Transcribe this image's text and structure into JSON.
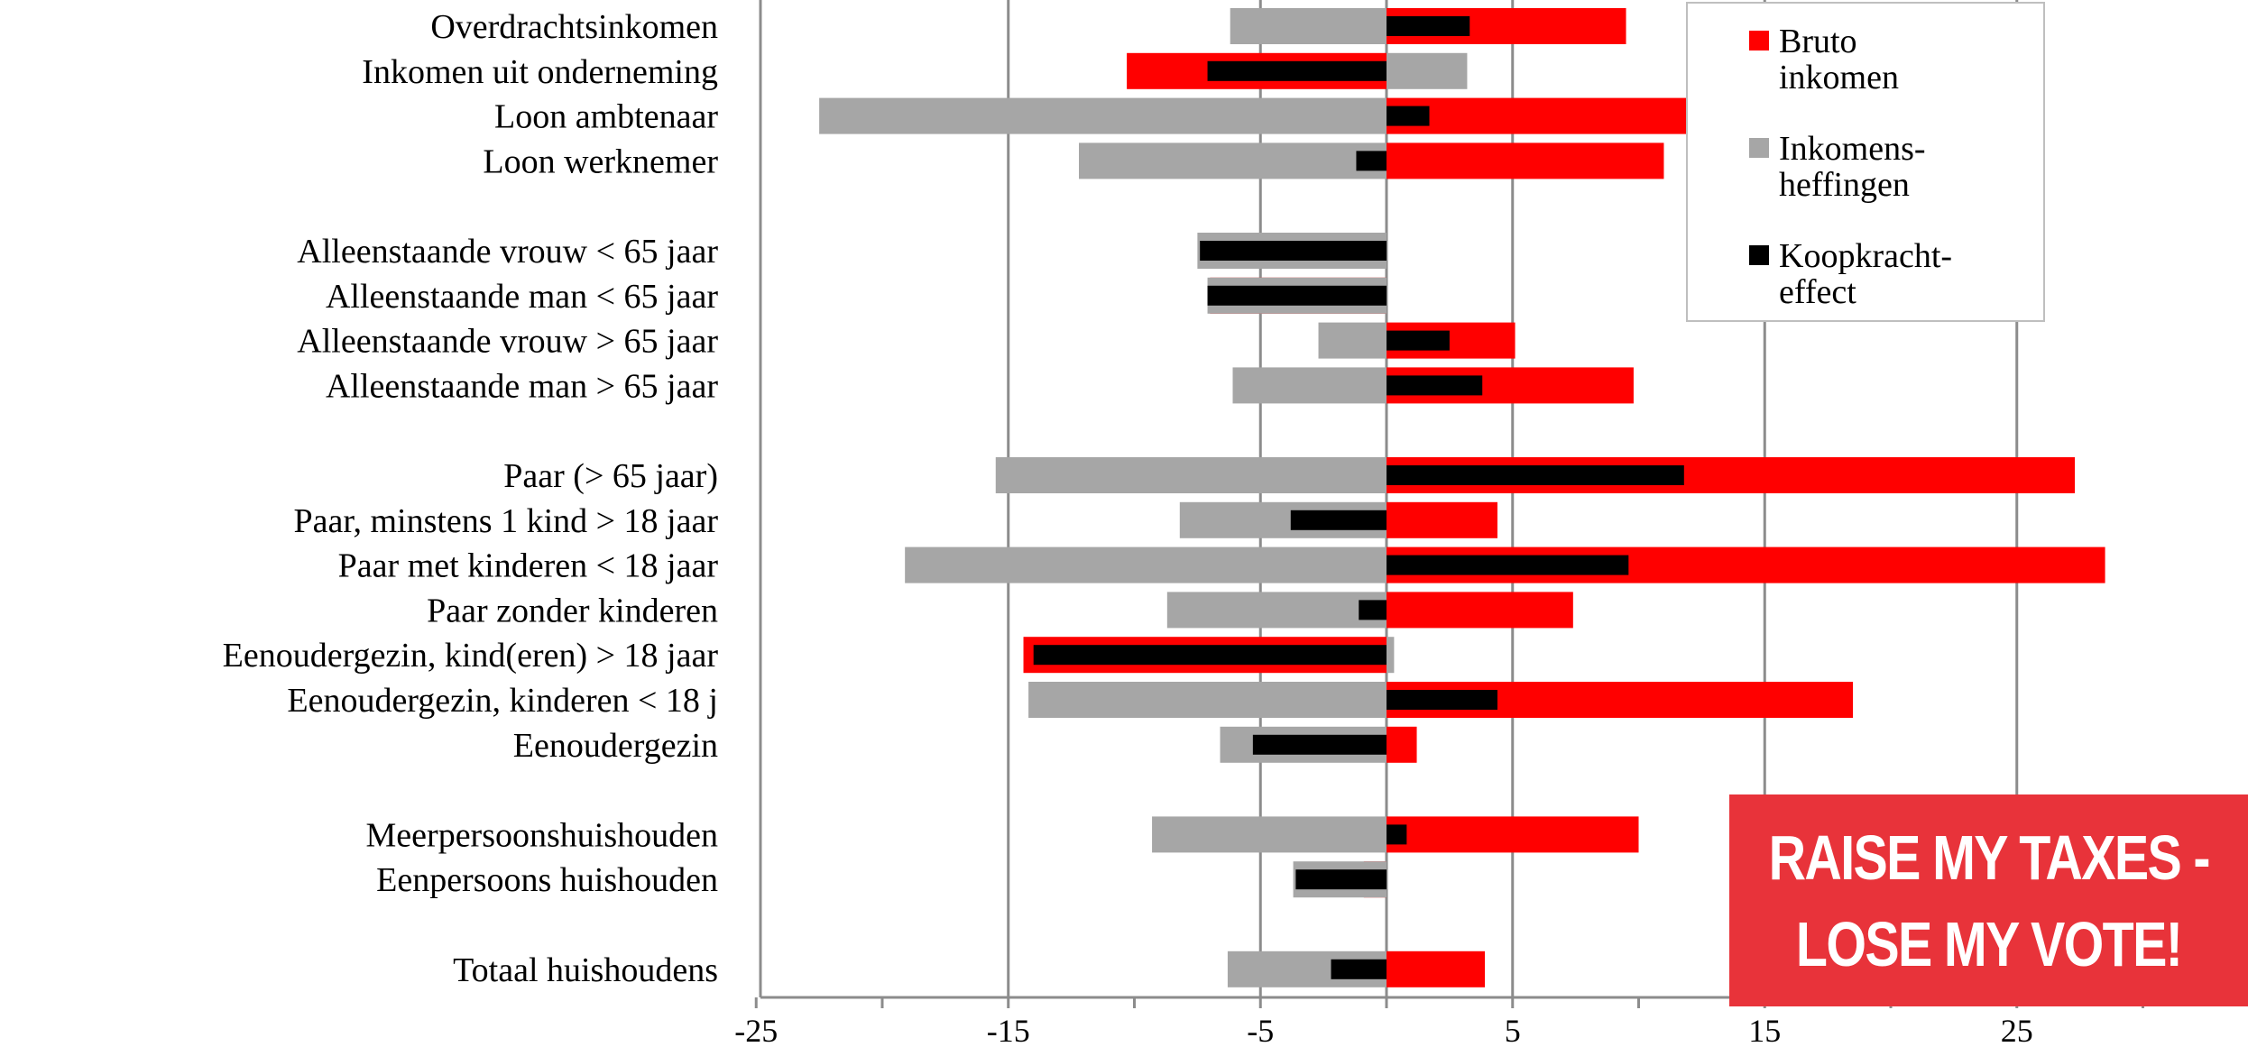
{
  "chart_data": {
    "type": "bar",
    "orientation": "horizontal",
    "categories": [
      "Overdrachtsinkomen",
      "Inkomen uit onderneming",
      "Loon ambtenaar",
      "Loon werknemer",
      "Alleenstaande vrouw < 65 jaar",
      "Alleenstaande man < 65 jaar",
      "Alleenstaande vrouw > 65 jaar",
      "Alleenstaande man > 65 jaar",
      "Paar (> 65 jaar)",
      "Paar, minstens 1 kind > 18 jaar",
      "Paar met kinderen < 18 jaar",
      "Paar zonder kinderen",
      "Eenoudergezin, kind(eren) > 18 jaar",
      "Eenoudergezin, kinderen < 18 j",
      "Eenoudergezin",
      "Meerpersoonshuishouden",
      "Eenpersoons huishouden",
      "Totaal huishoudens"
    ],
    "row_positions": [
      0,
      1,
      2,
      3,
      5,
      6,
      7,
      8,
      10,
      11,
      12,
      13,
      14,
      15,
      16,
      18,
      19,
      21
    ],
    "series": [
      {
        "name": "Bruto inkomen",
        "color": "#ff0000",
        "values": [
          9.5,
          -10.3,
          12,
          11,
          -1,
          -7,
          5.1,
          9.8,
          27.3,
          4.4,
          28.5,
          7.4,
          -14.4,
          18.5,
          1.2,
          10,
          -0.9,
          3.9
        ]
      },
      {
        "name": "Inkomens- heffingen",
        "color": "#a6a6a6",
        "values": [
          -6.2,
          3.2,
          -22.5,
          -12.2,
          -7.5,
          -7.1,
          -2.7,
          -6.1,
          -15.5,
          -8.2,
          -19.1,
          -8.7,
          0.3,
          -14.2,
          -6.6,
          -9.3,
          -3.7,
          -6.3
        ]
      },
      {
        "name": "Koopkracht- effect",
        "color": "#000000",
        "values": [
          3.3,
          -7.1,
          1.7,
          -1.2,
          -7.4,
          -7.1,
          2.5,
          3.8,
          11.8,
          -3.8,
          9.6,
          -1.1,
          -14,
          4.4,
          -5.3,
          0.8,
          -3.6,
          -2.2
        ]
      }
    ],
    "xlim": [
      -25,
      30
    ],
    "x_ticks": [
      -25,
      -15,
      -5,
      5,
      15,
      25
    ],
    "grid": true,
    "legend_position": "top-right",
    "xlabel": "",
    "ylabel": ""
  },
  "banner": {
    "line1": "RAISE MY TAXES -",
    "line2": "LOSE MY VOTE!"
  }
}
